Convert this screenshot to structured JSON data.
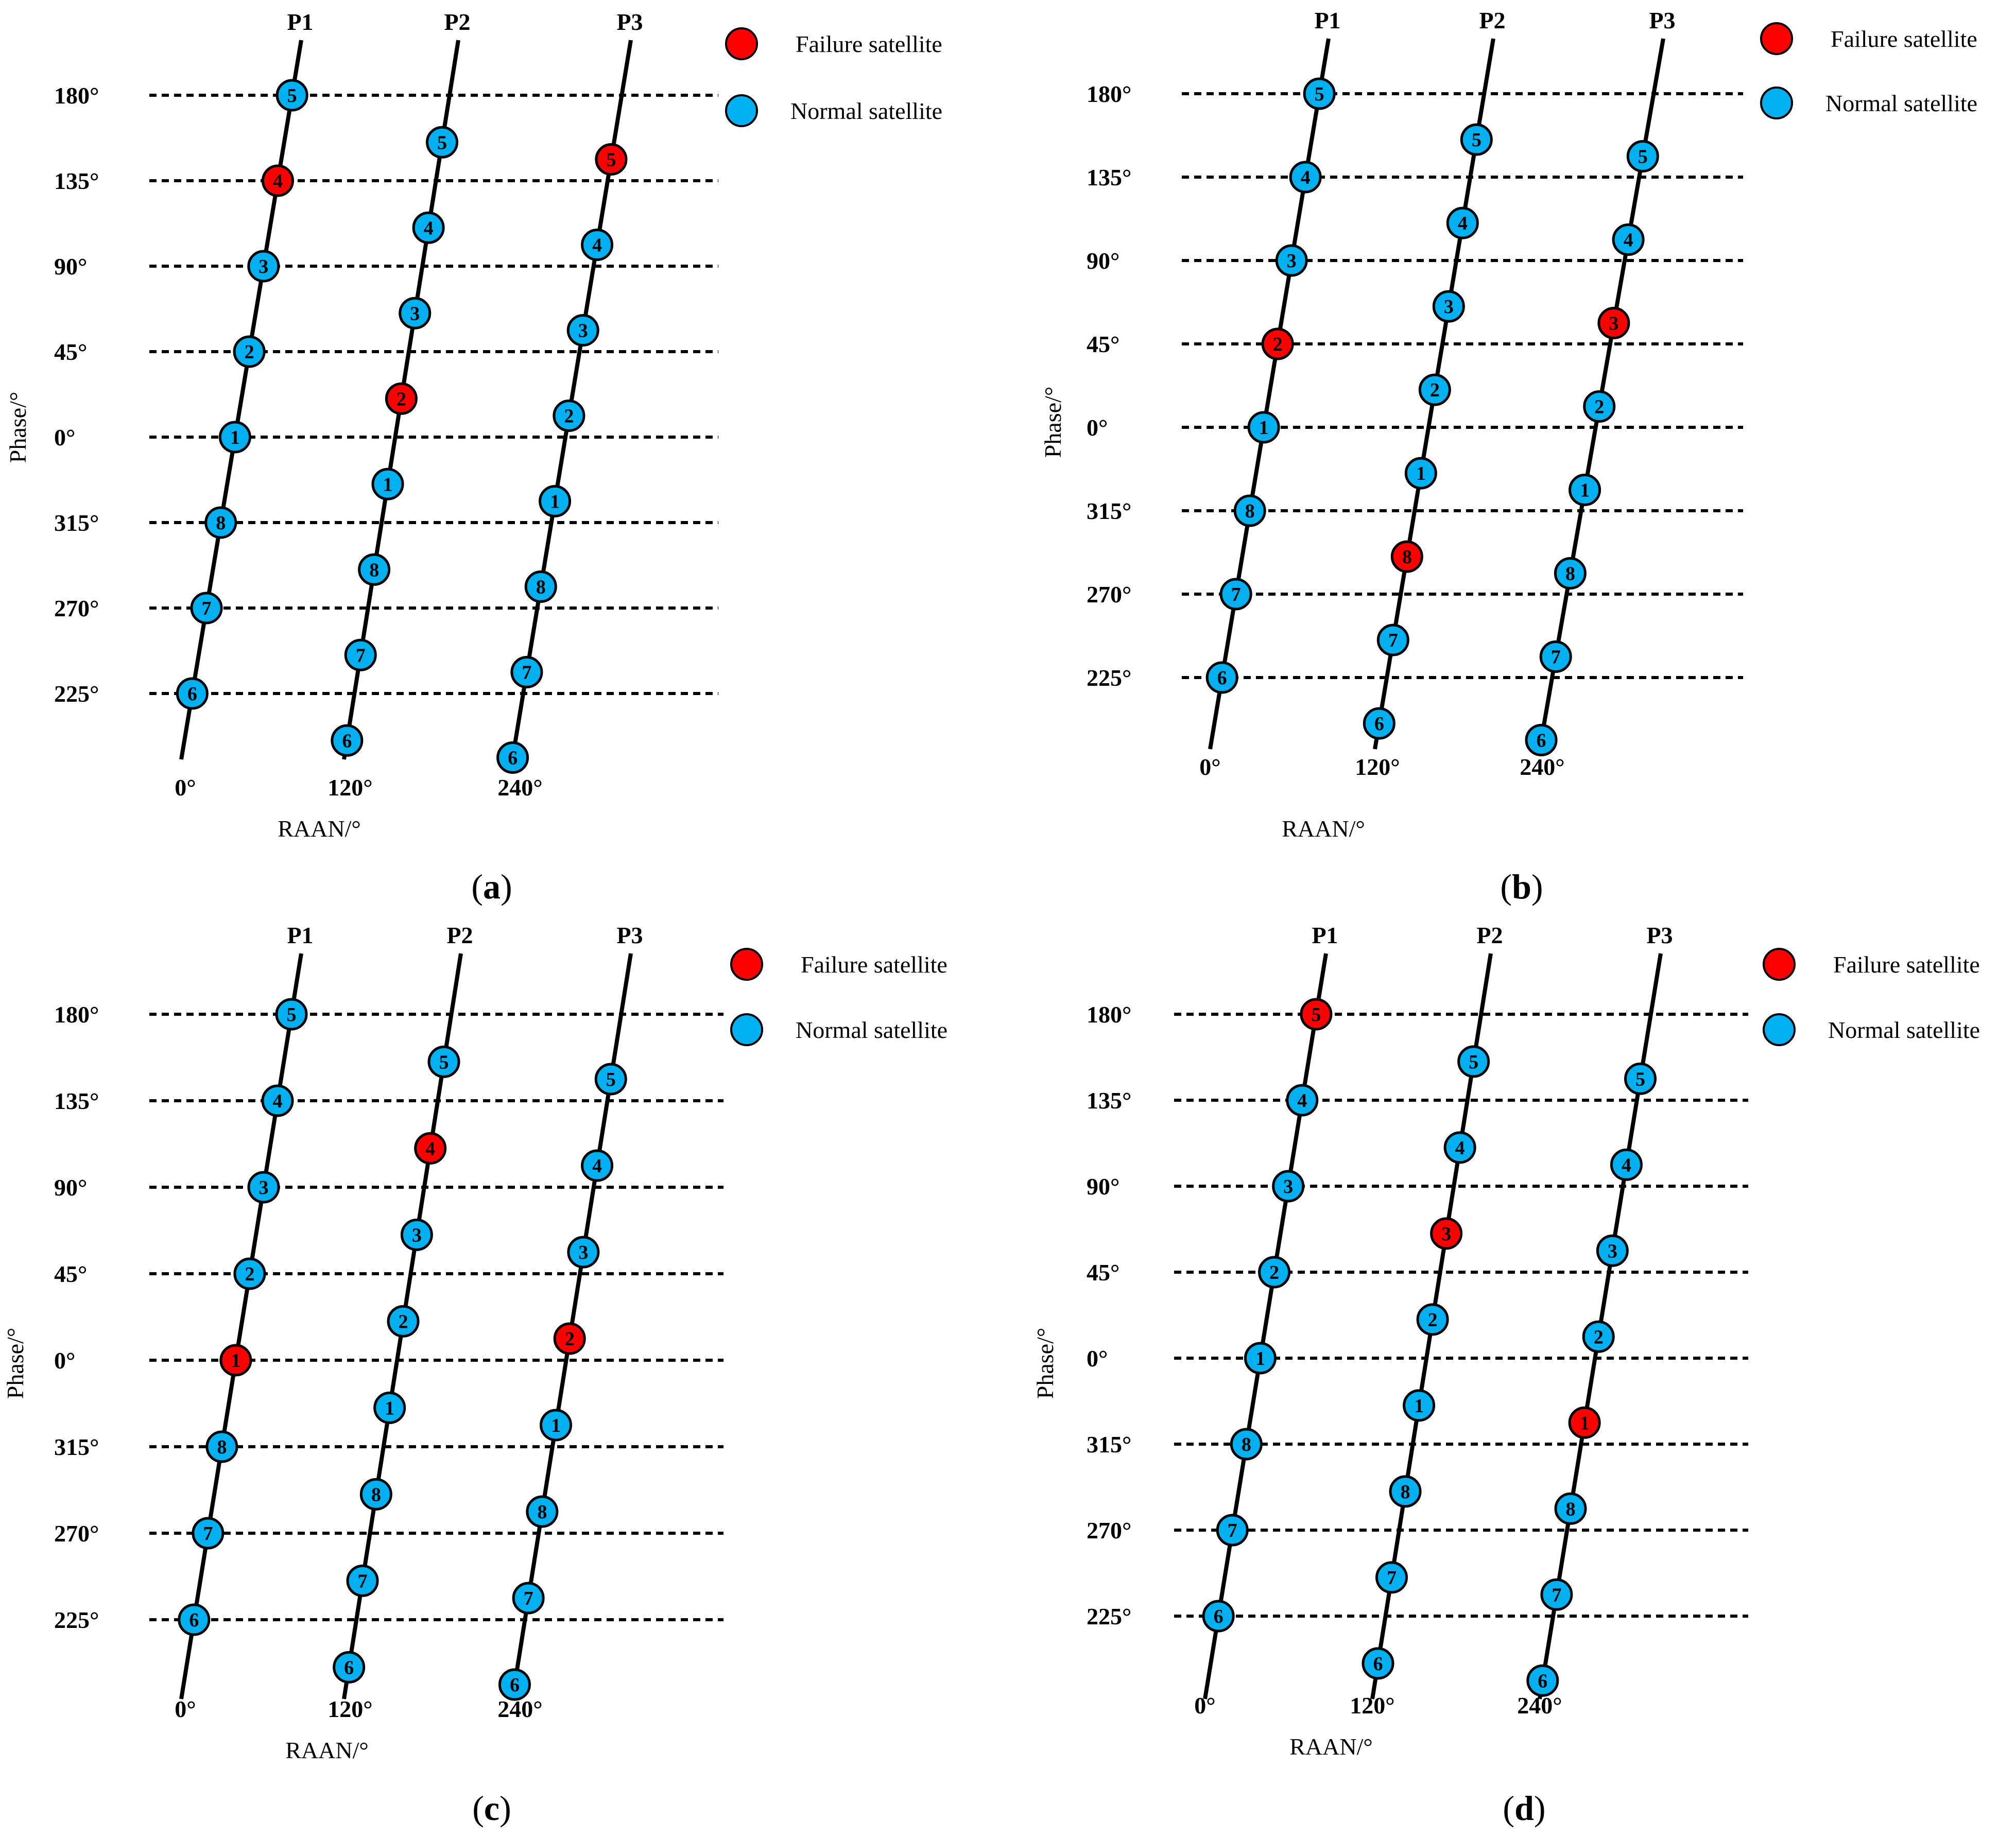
{
  "colors": {
    "failure": "#ff0000",
    "normal": "#00b0f0",
    "line": "#000000"
  },
  "legend": {
    "failure_label": "Failure satellite",
    "normal_label": "Normal satellite"
  },
  "axis": {
    "phase_title": "Phase/°",
    "raan_title": "RAAN/°",
    "phase_ticks": [
      "180°",
      "135°",
      "90°",
      "45°",
      "0°",
      "315°",
      "270°",
      "225°"
    ],
    "raan_ticks": [
      "0°",
      "120°",
      "240°"
    ]
  },
  "planes": [
    "P1",
    "P2",
    "P3"
  ],
  "satellite_labels": [
    "1",
    "2",
    "3",
    "4",
    "5",
    "6",
    "7",
    "8"
  ],
  "panels": [
    {
      "letter": "a",
      "caption_open": "(",
      "caption_close": ")",
      "failed": [
        {
          "plane": 1,
          "sat": 4
        },
        {
          "plane": 2,
          "sat": 2
        },
        {
          "plane": 3,
          "sat": 5
        }
      ]
    },
    {
      "letter": "b",
      "caption_open": "(",
      "caption_close": ")",
      "failed": [
        {
          "plane": 1,
          "sat": 2
        },
        {
          "plane": 2,
          "sat": 8
        },
        {
          "plane": 3,
          "sat": 3
        }
      ]
    },
    {
      "letter": "c",
      "caption_open": "(",
      "caption_close": ")",
      "failed": [
        {
          "plane": 1,
          "sat": 1
        },
        {
          "plane": 2,
          "sat": 4
        },
        {
          "plane": 3,
          "sat": 2
        }
      ]
    },
    {
      "letter": "d",
      "caption_open": "(",
      "caption_close": ")",
      "failed": [
        {
          "plane": 1,
          "sat": 5
        },
        {
          "plane": 2,
          "sat": 3
        },
        {
          "plane": 3,
          "sat": 1
        }
      ]
    }
  ]
}
